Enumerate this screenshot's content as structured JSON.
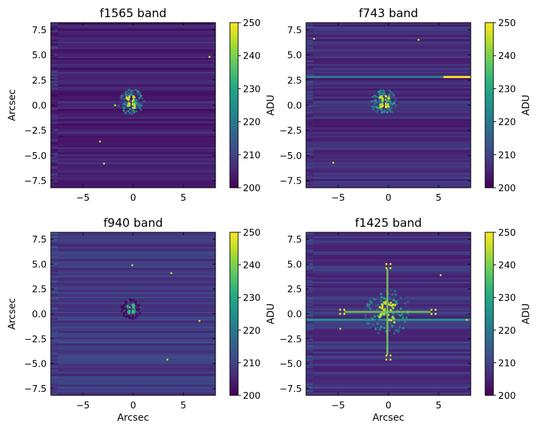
{
  "figure": {
    "colormap_name": "viridis",
    "colors": {
      "cmap": [
        "#440154",
        "#482475",
        "#414487",
        "#355f8d",
        "#2a788e",
        "#21918c",
        "#22a884",
        "#44bf70",
        "#7ad151",
        "#bddf26",
        "#fde725"
      ],
      "background": "#ffffff",
      "frame": "#000000"
    }
  },
  "chart_data": [
    {
      "type": "heatmap",
      "title": "f1565 band",
      "xlabel": "",
      "ylabel": "Arcsec",
      "xlim": [
        -8.2,
        8.2
      ],
      "ylim": [
        -8.2,
        8.2
      ],
      "xticks": [
        -5,
        0,
        5
      ],
      "yticks": [
        -7.5,
        -5.0,
        -2.5,
        0.0,
        2.5,
        5.0,
        7.5
      ],
      "colorbar": {
        "label": "ADU",
        "range": [
          200,
          250
        ],
        "ticks": [
          200,
          210,
          220,
          230,
          240,
          250
        ]
      },
      "background_level": 204,
      "features": [
        {
          "kind": "psf_core",
          "x": -0.2,
          "y": 0.3,
          "peak": 250,
          "halo_radius": 1.3
        },
        {
          "kind": "hot_pixel",
          "x": -1.8,
          "y": 0.0
        },
        {
          "kind": "hot_pixel",
          "x": -3.3,
          "y": -3.6
        },
        {
          "kind": "hot_pixel",
          "x": -2.9,
          "y": -5.8
        },
        {
          "kind": "hot_pixel",
          "x": 7.6,
          "y": 4.8
        }
      ]
    },
    {
      "type": "heatmap",
      "title": "f743 band",
      "xlabel": "",
      "ylabel": "",
      "xlim": [
        -8.2,
        8.2
      ],
      "ylim": [
        -8.2,
        8.2
      ],
      "xticks": [
        -5,
        0,
        5
      ],
      "yticks": [
        -7.5,
        -5.0,
        -2.5,
        0.0,
        2.5,
        5.0,
        7.5
      ],
      "colorbar": {
        "label": "ADU",
        "range": [
          200,
          250
        ],
        "ticks": [
          200,
          210,
          220,
          230,
          240,
          250
        ]
      },
      "background_level": 206,
      "features": [
        {
          "kind": "psf_core",
          "x": -0.4,
          "y": 0.3,
          "peak": 250,
          "halo_radius": 1.3
        },
        {
          "kind": "horizontal_streak",
          "y": 2.8,
          "x_start": -8.2,
          "x_end": 5.5,
          "level": 222
        },
        {
          "kind": "horizontal_streak",
          "y": 2.8,
          "x_start": 5.5,
          "x_end": 8.2,
          "level": 250
        },
        {
          "kind": "hot_pixel",
          "x": -7.4,
          "y": 6.6
        },
        {
          "kind": "hot_pixel",
          "x": 3.0,
          "y": 6.5
        },
        {
          "kind": "hot_pixel",
          "x": -5.5,
          "y": -5.7
        }
      ]
    },
    {
      "type": "heatmap",
      "title": "f940 band",
      "xlabel": "Arcsec",
      "ylabel": "Arcsec",
      "xlim": [
        -8.2,
        8.2
      ],
      "ylim": [
        -8.2,
        8.2
      ],
      "xticks": [
        -5,
        0,
        5
      ],
      "yticks": [
        -7.5,
        -5.0,
        -2.5,
        0.0,
        2.5,
        5.0,
        7.5
      ],
      "colorbar": {
        "label": "ADU",
        "range": [
          200,
          250
        ],
        "ticks": [
          200,
          210,
          220,
          230,
          240,
          250
        ]
      },
      "background_level": 208,
      "features": [
        {
          "kind": "psf_core",
          "x": -0.2,
          "y": 0.5,
          "peak": 236,
          "halo_radius": 1.0
        },
        {
          "kind": "hot_pixel",
          "x": 3.8,
          "y": 4.1
        },
        {
          "kind": "hot_pixel",
          "x": 6.6,
          "y": -0.7
        },
        {
          "kind": "hot_pixel",
          "x": -0.1,
          "y": 4.9
        },
        {
          "kind": "hot_pixel",
          "x": 3.4,
          "y": -4.6
        }
      ]
    },
    {
      "type": "heatmap",
      "title": "f1425 band",
      "xlabel": "Arcsec",
      "ylabel": "",
      "xlim": [
        -8.2,
        8.2
      ],
      "ylim": [
        -8.2,
        8.2
      ],
      "xticks": [
        -5,
        0,
        5
      ],
      "yticks": [
        -7.5,
        -5.0,
        -2.5,
        0.0,
        2.5,
        5.0,
        7.5
      ],
      "colorbar": {
        "label": "ADU",
        "range": [
          200,
          250
        ],
        "ticks": [
          200,
          210,
          220,
          230,
          240,
          250
        ]
      },
      "background_level": 207,
      "features": [
        {
          "kind": "psf_core",
          "x": -0.1,
          "y": 0.2,
          "peak": 250,
          "halo_radius": 2.3
        },
        {
          "kind": "diffraction_cross",
          "x": -0.1,
          "y": 0.2,
          "arm_length": 4.3,
          "level": 240
        },
        {
          "kind": "horizontal_streak",
          "y": -0.6,
          "x_start": -8.2,
          "x_end": 8.2,
          "level": 226
        },
        {
          "kind": "satellite_spot",
          "x": 0.0,
          "y": 4.8
        },
        {
          "kind": "satellite_spot",
          "x": 0.0,
          "y": -4.4
        },
        {
          "kind": "satellite_spot",
          "x": -4.6,
          "y": 0.2
        },
        {
          "kind": "satellite_spot",
          "x": 4.5,
          "y": 0.2
        },
        {
          "kind": "hot_pixel",
          "x": -4.8,
          "y": -1.5
        },
        {
          "kind": "hot_pixel",
          "x": 5.2,
          "y": 3.9
        },
        {
          "kind": "hot_pixel",
          "x": 7.8,
          "y": -0.6
        }
      ]
    }
  ]
}
